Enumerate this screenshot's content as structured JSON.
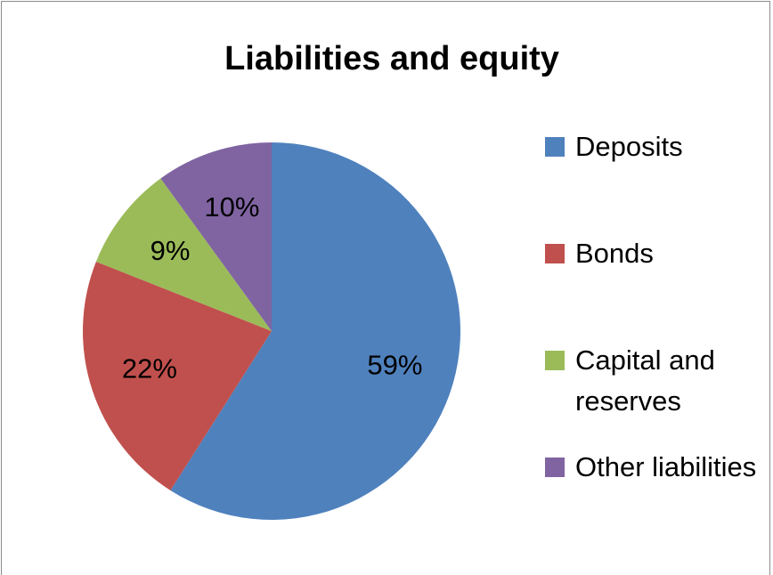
{
  "chart_data": {
    "type": "pie",
    "title": "Liabilities and equity",
    "categories": [
      "Deposits",
      "Bonds",
      "Capital and reserves",
      "Other liabilities"
    ],
    "values": [
      59,
      22,
      9,
      10
    ],
    "value_labels": [
      "59%",
      "22%",
      "9%",
      "10%"
    ],
    "colors": [
      "#4f81bd",
      "#c0504d",
      "#9bbb59",
      "#8064a2"
    ],
    "legend": "right"
  }
}
